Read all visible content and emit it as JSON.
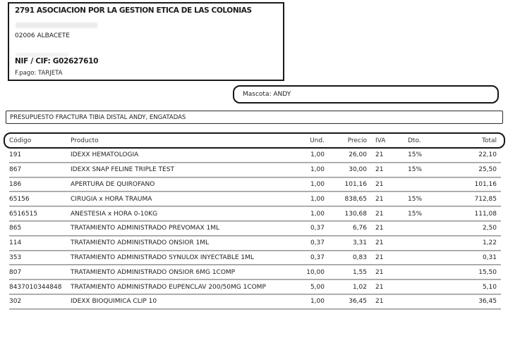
{
  "clinic": {
    "name": "2791 ASOCIACION POR LA GESTION ETICA DE LAS COLONIAS",
    "city_line": "02006 ALBACETE",
    "nif_line": "NIF / CIF: G02627610",
    "payment_line": "F.pago: TARJETA"
  },
  "pet": {
    "label": "Mascota: ANDY"
  },
  "subject": {
    "title": "PRESUPUESTO FRACTURA TIBIA DISTAL ANDY, ENGATADAS"
  },
  "table": {
    "headers": {
      "codigo": "Código",
      "producto": "Producto",
      "und": "Und.",
      "precio": "Precio",
      "iva": "IVA",
      "dto": "Dto.",
      "total": "Total"
    },
    "rows": [
      {
        "codigo": "191",
        "producto": "IDEXX HEMATOLOGIA",
        "und": "1,00",
        "precio": "26,00",
        "iva": "21",
        "dto": "15%",
        "total": "22,10"
      },
      {
        "codigo": "867",
        "producto": "IDEXX SNAP FELINE TRIPLE TEST",
        "und": "1,00",
        "precio": "30,00",
        "iva": "21",
        "dto": "15%",
        "total": "25,50"
      },
      {
        "codigo": "186",
        "producto": "APERTURA DE QUIROFANO",
        "und": "1,00",
        "precio": "101,16",
        "iva": "21",
        "dto": "",
        "total": "101,16"
      },
      {
        "codigo": "65156",
        "producto": "CIRUGIA x HORA TRAUMA",
        "und": "1,00",
        "precio": "838,65",
        "iva": "21",
        "dto": "15%",
        "total": "712,85"
      },
      {
        "codigo": "6516515",
        "producto": "ANESTESIA x HORA 0-10KG",
        "und": "1,00",
        "precio": "130,68",
        "iva": "21",
        "dto": "15%",
        "total": "111,08"
      },
      {
        "codigo": "865",
        "producto": "TRATAMIENTO ADMINISTRADO PREVOMAX 1ML",
        "und": "0,37",
        "precio": "6,76",
        "iva": "21",
        "dto": "",
        "total": "2,50"
      },
      {
        "codigo": "114",
        "producto": "TRATAMIENTO ADMINISTRADO ONSIOR 1ML",
        "und": "0,37",
        "precio": "3,31",
        "iva": "21",
        "dto": "",
        "total": "1,22"
      },
      {
        "codigo": "353",
        "producto": "TRATAMIENTO ADMINISTRADO SYNULOX INYECTABLE 1ML",
        "und": "0,37",
        "precio": "0,83",
        "iva": "21",
        "dto": "",
        "total": "0,31"
      },
      {
        "codigo": "807",
        "producto": "TRATAMIENTO ADMINISTRADO ONSIOR 6MG 1COMP",
        "und": "10,00",
        "precio": "1,55",
        "iva": "21",
        "dto": "",
        "total": "15,50"
      },
      {
        "codigo": "8437010344848",
        "producto": "TRATAMIENTO ADMINISTRADO EUPENCLAV 200/50MG 1COMP",
        "und": "5,00",
        "precio": "1,02",
        "iva": "21",
        "dto": "",
        "total": "5,10"
      },
      {
        "codigo": "302",
        "producto": "IDEXX BIOQUIMICA CLIP 10",
        "und": "1,00",
        "precio": "36,45",
        "iva": "21",
        "dto": "",
        "total": "36,45"
      }
    ]
  }
}
